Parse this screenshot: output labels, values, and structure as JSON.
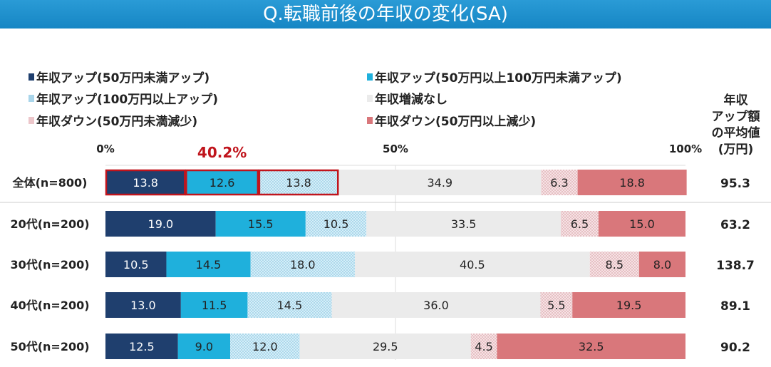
{
  "title": "Q.転職前後の年収の変化(SA)",
  "avg_header": [
    "年収",
    "アップ額",
    "の平均値",
    "(万円)"
  ],
  "chart_data": {
    "type": "bar",
    "orientation": "horizontal",
    "stacked": true,
    "title": "Q.転職前後の年収の変化(SA)",
    "categories": [
      "全体(n=800)",
      "20代(n=200)",
      "30代(n=200)",
      "40代(n=200)",
      "50代(n=200)"
    ],
    "series": [
      {
        "name": "年収アップ(50万円未満アップ)",
        "color": "#1f3f6e",
        "values": [
          13.8,
          19.0,
          10.5,
          13.0,
          12.5
        ]
      },
      {
        "name": "年収アップ(50万円以上100万円未満アップ)",
        "color": "#1fb0dc",
        "values": [
          12.6,
          15.5,
          14.5,
          11.5,
          9.0
        ]
      },
      {
        "name": "年収アップ(100万円以上アップ)",
        "color": "#bfe2f2",
        "pattern": "dotted",
        "values": [
          13.8,
          10.5,
          18.0,
          14.5,
          12.0
        ]
      },
      {
        "name": "年収増減なし",
        "color": "#ebebeb",
        "values": [
          34.9,
          33.5,
          40.5,
          36.0,
          29.5
        ]
      },
      {
        "name": "年収ダウン(50万円未満減少)",
        "color": "#f0d0d3",
        "pattern": "dotted",
        "values": [
          6.3,
          6.5,
          8.5,
          5.5,
          4.5
        ]
      },
      {
        "name": "年収ダウン(50万円以上減少)",
        "color": "#d9777b",
        "values": [
          18.8,
          15.0,
          8.0,
          19.5,
          32.5
        ]
      }
    ],
    "xticks": [
      "0%",
      "50%",
      "100%"
    ],
    "xlim": [
      0,
      100
    ],
    "annotation": {
      "text": "40.2%",
      "color": "#c0141c"
    },
    "avg_up_amount": [
      "95.3",
      "63.2",
      "138.7",
      "89.1",
      "90.2"
    ]
  }
}
